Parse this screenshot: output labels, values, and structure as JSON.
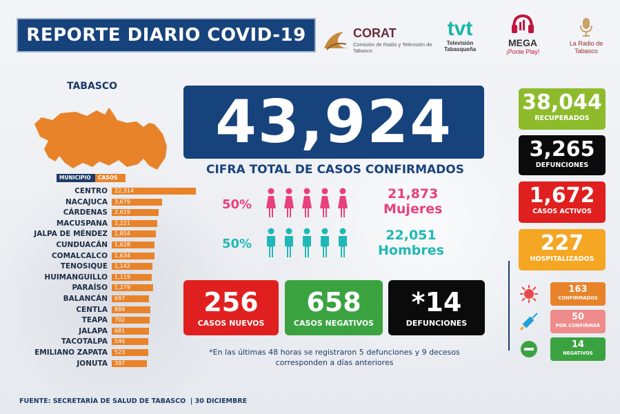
{
  "header": {
    "title": "REPORTE DIARIO COVID-19",
    "logos": {
      "corat_name": "CORAT",
      "corat_sub": "Comisión de Radio y Televisión de Tabasco",
      "tvt_name": "tvt",
      "tvt_sub": "Televisión Tabasqueña",
      "mega_name": "MEGA",
      "mega_sub": "¡Ponle Play!",
      "radio_sub": "La Radio de Tabasco"
    }
  },
  "state_label": "TABASCO",
  "table": {
    "header_municipio": "MUNICIPIO",
    "header_casos": "CASOS"
  },
  "chart_data": {
    "type": "bar",
    "orientation": "horizontal",
    "categories": [
      "CENTRO",
      "NACAJUCA",
      "CÁRDENAS",
      "MACUSPANA",
      "JALPA DE MÉNDEZ",
      "CUNDUACÁN",
      "COMALCALCO",
      "TENOSIQUE",
      "HUIMANGUILLO",
      "PARAÍSO",
      "BALANCÁN",
      "CENTLA",
      "TEAPA",
      "JALAPA",
      "TACOTALPA",
      "EMILIANO ZAPATA",
      "JONUTA"
    ],
    "values": [
      22314,
      3679,
      2619,
      2221,
      1854,
      1628,
      1634,
      1142,
      1119,
      1279,
      697,
      889,
      702,
      681,
      546,
      523,
      397
    ],
    "labels": [
      "22,314",
      "3,679",
      "2,619",
      "2,221",
      "1,854",
      "1,628",
      "1,634",
      "1,142",
      "1,119",
      "1,279",
      "697",
      "889",
      "702",
      "681",
      "546",
      "523",
      "397"
    ],
    "bar_color": "#e8832a"
  },
  "total": {
    "value": "43,924",
    "label": "CIFRA TOTAL DE CASOS CONFIRMADOS"
  },
  "gender": {
    "women_pct": "50%",
    "women_value": "21,873",
    "women_label": "Mujeres",
    "women_color": "#e8407e",
    "men_pct": "50%",
    "men_value": "22,051",
    "men_label": "Hombres",
    "men_color": "#1fb8b6"
  },
  "daily": {
    "new_value": "256",
    "new_label": "CASOS NUEVOS",
    "neg_value": "658",
    "neg_label": "CASOS NEGATIVOS",
    "deaths_value": "*14",
    "deaths_label": "DEFUNCIONES"
  },
  "note": "*En las últimas 48 horas se registraron 5 defunciones y 9 decesos corresponden a días anteriores",
  "side": {
    "recovered_value": "38,044",
    "recovered_label": "RECUPERADOS",
    "deaths_value": "3,265",
    "deaths_label": "DEFUNCIONES",
    "active_value": "1,672",
    "active_label": "CASOS ACTIVOS",
    "hosp_value": "227",
    "hosp_label": "HOSPITALIZADOS"
  },
  "hospital_breakdown": {
    "confirmed_value": "163",
    "confirmed_label": "CONFIRMADOS",
    "pending_value": "50",
    "pending_label": "POR CONFIRMAR",
    "negative_value": "14",
    "negative_label": "NEGATIVOS"
  },
  "colors": {
    "navy": "#17437c",
    "orange": "#e8832a",
    "red": "#e0201f",
    "green": "#3aa340",
    "lime": "#8dbb2b",
    "amber": "#f5a623",
    "pink": "#f08b8b",
    "black": "#0b0b0b"
  },
  "footer": {
    "source": "FUENTE: SECRETARÍA DE SALUD DE TABASCO",
    "date": "30 DICIEMBRE"
  }
}
